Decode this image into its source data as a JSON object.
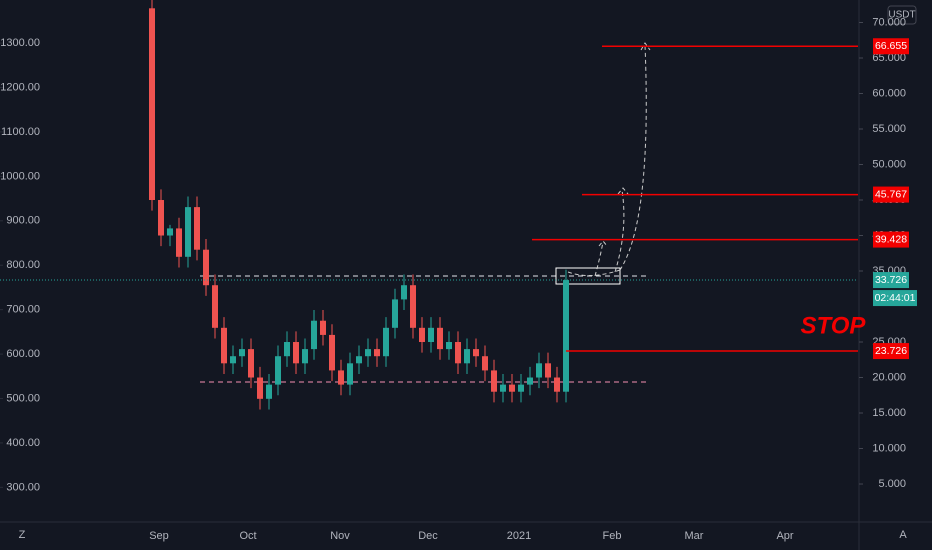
{
  "chart_data": {
    "type": "candlestick",
    "currency": "USDT",
    "stop_label": "STOP",
    "countdown": "02:44:01",
    "corner_left": "Z",
    "corner_right": "A",
    "x_labels": [
      "Sep",
      "Oct",
      "Nov",
      "Dec",
      "2021",
      "Feb",
      "Mar",
      "Apr"
    ],
    "ylim": [
      222,
      1397
    ],
    "yticks": [
      {
        "value": 1300,
        "label": "1300.00"
      },
      {
        "value": 1200,
        "label": "1200.00"
      },
      {
        "value": 1100,
        "label": "1100.00"
      },
      {
        "value": 1000,
        "label": "1000.00"
      },
      {
        "value": 900,
        "label": "900.00"
      },
      {
        "value": 800,
        "label": "800.00"
      },
      {
        "value": 700,
        "label": "700.00"
      },
      {
        "value": 600,
        "label": "600.00"
      },
      {
        "value": 500,
        "label": "500.00"
      },
      {
        "value": 400,
        "label": "400.00"
      },
      {
        "value": 300,
        "label": "300.00"
      }
    ],
    "y2lim": [
      -0.35,
      73.17
    ],
    "y2ticks": [
      {
        "value": 70,
        "label": "70.000"
      },
      {
        "value": 65,
        "label": "65.000"
      },
      {
        "value": 60,
        "label": "60.000"
      },
      {
        "value": 55,
        "label": "55.000"
      },
      {
        "value": 50,
        "label": "50.000"
      },
      {
        "value": 45,
        "label": "45.000"
      },
      {
        "value": 40,
        "label": "40.000"
      },
      {
        "value": 35,
        "label": "35.000"
      },
      {
        "value": 25,
        "label": "25.000"
      },
      {
        "value": 20,
        "label": "20.000"
      },
      {
        "value": 15,
        "label": "15.000"
      },
      {
        "value": 10,
        "label": "10.000"
      },
      {
        "value": 5,
        "label": "5.000"
      }
    ],
    "up_color": "#26a69a",
    "down_color": "#ef5350",
    "open": [
      72,
      45,
      40,
      41,
      37,
      44,
      38,
      33,
      27,
      22,
      23,
      24,
      20,
      17,
      19,
      23,
      25,
      22,
      24,
      28,
      26,
      21,
      19,
      22,
      23,
      24,
      23,
      27,
      31,
      33,
      27,
      25,
      27,
      24,
      25,
      22,
      24,
      23,
      21,
      18,
      19,
      18,
      19,
      20,
      22,
      20,
      18
    ],
    "high": [
      73.5,
      46.5,
      41.5,
      42.5,
      45.5,
      45.5,
      39.5,
      34.5,
      28.5,
      24.5,
      25.5,
      25.5,
      21.5,
      20.5,
      24.5,
      26.5,
      26.5,
      25.5,
      29.5,
      29.5,
      27.5,
      22.5,
      23.5,
      24.5,
      25.5,
      25.5,
      28.5,
      32.5,
      34.5,
      34.5,
      28.5,
      28.5,
      28.5,
      26.5,
      26.5,
      25.5,
      25.5,
      24.5,
      22.5,
      20.5,
      20.5,
      20.5,
      21.5,
      23.5,
      23.5,
      21.5,
      35.2
    ],
    "low": [
      43.5,
      38.5,
      38.5,
      35.5,
      35.5,
      36.5,
      31.5,
      25.5,
      20.5,
      20.5,
      21.5,
      18.5,
      15.5,
      15.5,
      17.5,
      21.5,
      20.5,
      20.5,
      22.5,
      24.5,
      19.5,
      17.5,
      17.5,
      20.5,
      21.5,
      21.5,
      21.5,
      25.5,
      29.5,
      25.5,
      23.5,
      23.5,
      22.5,
      22.5,
      20.5,
      20.5,
      21.5,
      19.5,
      16.5,
      16.5,
      16.5,
      16.5,
      17.5,
      18.5,
      18.5,
      16.5,
      16.5
    ],
    "close": [
      45,
      40,
      41,
      37,
      44,
      38,
      33,
      27,
      22,
      23,
      24,
      20,
      17,
      19,
      23,
      25,
      22,
      24,
      28,
      26,
      21,
      19,
      22,
      23,
      24,
      23,
      27,
      31,
      33,
      27,
      25,
      27,
      24,
      25,
      22,
      24,
      23,
      21,
      18,
      19,
      18,
      19,
      20,
      22,
      20,
      18,
      33.726
    ],
    "last_price": 33.726,
    "levels": [
      {
        "value": 66.655,
        "color": "#f20000"
      },
      {
        "value": 45.767,
        "color": "#f20000"
      },
      {
        "value": 39.428,
        "color": "#f20000"
      },
      {
        "value": 23.726,
        "color": "#f20000"
      }
    ]
  }
}
